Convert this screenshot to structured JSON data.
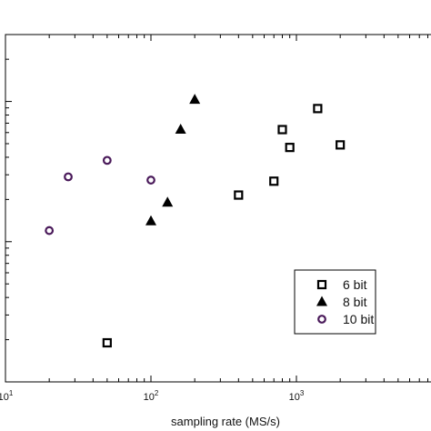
{
  "chart_data": {
    "type": "scatter",
    "title": "",
    "xlabel": "sampling rate (MS/s)",
    "ylabel": "",
    "x_scale": "log",
    "y_scale": "log",
    "xlim": [
      10,
      10000
    ],
    "ylim": [
      10,
      3000
    ],
    "x_tick_labels": [
      {
        "value": 10,
        "base": "10",
        "exp": "1"
      },
      {
        "value": 100,
        "base": "10",
        "exp": "2"
      },
      {
        "value": 1000,
        "base": "10",
        "exp": "3"
      }
    ],
    "grid": false,
    "legend_position": "bottom-right",
    "series": [
      {
        "name": "6 bit",
        "marker": "square",
        "color": "#000000",
        "points": [
          [
            50,
            19
          ],
          [
            400,
            215
          ],
          [
            700,
            270
          ],
          [
            800,
            630
          ],
          [
            900,
            470
          ],
          [
            1400,
            890
          ],
          [
            2000,
            490
          ]
        ]
      },
      {
        "name": "8 bit",
        "marker": "triangle",
        "color": "#000000",
        "points": [
          [
            100,
            140
          ],
          [
            130,
            190
          ],
          [
            160,
            630
          ],
          [
            200,
            1030
          ]
        ]
      },
      {
        "name": "10 bit",
        "marker": "circle",
        "color": "#4a1a5a",
        "points": [
          [
            20,
            120
          ],
          [
            27,
            290
          ],
          [
            50,
            380
          ],
          [
            100,
            275
          ]
        ]
      }
    ]
  }
}
